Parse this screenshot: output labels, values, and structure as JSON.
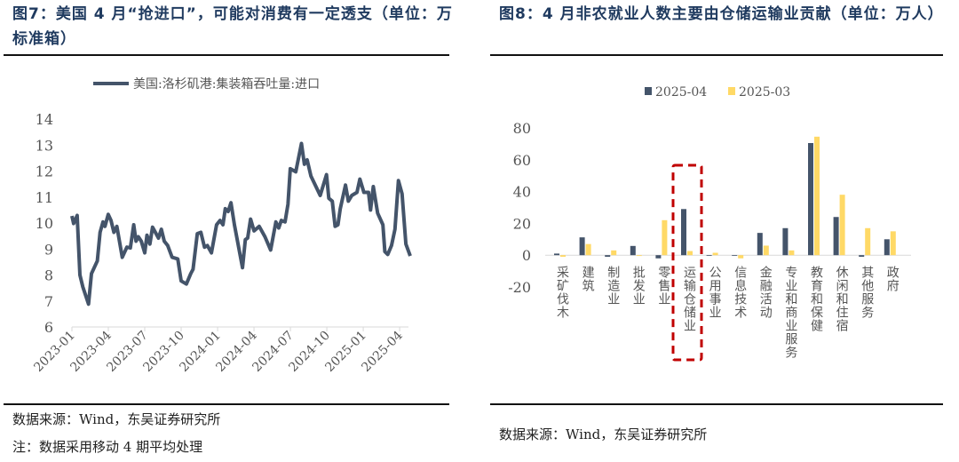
{
  "left": {
    "title": "图7：美国 4 月“抢进口”，可能对消费有一定透支（单位：万标准箱）",
    "source": "数据来源：Wind，东吴证券研究所",
    "note": "注：数据采用移动 4 期平均处理"
  },
  "right": {
    "title": "图8：4 月非农就业人数主要由仓储运输业贡献（单位：万人）",
    "source": "数据来源：Wind，东吴证券研究所"
  },
  "chart_data": [
    {
      "type": "line",
      "title": "美国 4 月“抢进口”，可能对消费有一定透支",
      "ylabel": "万标准箱",
      "ylim": [
        6,
        14
      ],
      "yticks": [
        "6",
        "7",
        "8",
        "9",
        "10",
        "11",
        "12",
        "13",
        "14"
      ],
      "xticks": [
        "2023-01",
        "2023-04",
        "2023-07",
        "2023-10",
        "2024-01",
        "2024-04",
        "2024-07",
        "2024-10",
        "2025-01",
        "2025-04"
      ],
      "x_unit": "months since 2023-01",
      "series": [
        {
          "name": "美国:洛杉矶港:集装箱吞吐量:进口",
          "color": "#44546a",
          "x": [
            0,
            0.14,
            0.43,
            0.66,
            0.9,
            1.37,
            1.61,
            2.09,
            2.32,
            2.56,
            2.72,
            2.99,
            3.22,
            3.46,
            3.7,
            4.15,
            4.53,
            4.81,
            5.09,
            5.28,
            5.47,
            5.71,
            6.0,
            6.18,
            6.42,
            6.64,
            7.13,
            7.37,
            7.61,
            7.89,
            8.25,
            8.72,
            9.0,
            9.43,
            9.79,
            9.98,
            10.33,
            10.62,
            10.92,
            11.16,
            11.49,
            11.92,
            12.2,
            12.44,
            12.63,
            12.87,
            13.1,
            13.39,
            14.05,
            14.29,
            14.48,
            14.72,
            15.0,
            15.43,
            15.9,
            16.37,
            16.8,
            17.04,
            17.25,
            17.56,
            17.8,
            17.99,
            18.44,
            18.91,
            19.15,
            19.38,
            19.69,
            20.45,
            20.97,
            21.16,
            21.45,
            21.68,
            21.92,
            22.11,
            22.54,
            22.77,
            23.06,
            23.48,
            23.72,
            24.05,
            24.43,
            24.6,
            24.83,
            25.19,
            25.62,
            25.78,
            26.02,
            26.33,
            26.61,
            26.9,
            27.2,
            27.51,
            27.87
          ],
          "values": [
            10.27,
            9.98,
            10.29,
            8.0,
            7.54,
            6.88,
            8.05,
            8.54,
            9.64,
            10.04,
            9.87,
            10.33,
            10.1,
            9.64,
            9.87,
            8.68,
            9.07,
            9.04,
            9.93,
            9.3,
            9.47,
            9.3,
            8.85,
            9.53,
            9.19,
            9.84,
            9.42,
            9.76,
            9.3,
            9.13,
            8.68,
            8.62,
            7.77,
            7.65,
            8.05,
            8.22,
            9.59,
            9.64,
            9.07,
            9.13,
            8.85,
            9.93,
            10.1,
            9.93,
            10.55,
            10.44,
            10.78,
            9.93,
            8.28,
            9.36,
            9.42,
            10.15,
            9.7,
            9.87,
            9.47,
            8.96,
            10.04,
            9.81,
            10.1,
            10.04,
            10.72,
            12.09,
            11.97,
            13.06,
            12.26,
            12.43,
            11.8,
            11.06,
            11.86,
            10.95,
            10.84,
            9.87,
            9.93,
            10.55,
            11.46,
            10.84,
            11.06,
            11.18,
            11.69,
            11.18,
            11.18,
            10.5,
            11.4,
            10.38,
            9.93,
            8.9,
            8.79,
            9.13,
            9.76,
            11.63,
            11.12,
            9.19,
            8.73
          ]
        }
      ]
    },
    {
      "type": "bar",
      "title": "4 月非农就业人数主要由仓储运输业贡献",
      "ylabel": "万人",
      "ylim": [
        -20,
        80
      ],
      "yticks": [
        "-20",
        "0",
        "20",
        "40",
        "60",
        "80"
      ],
      "categories": [
        "采矿伐木",
        "建筑",
        "制造业",
        "批发业",
        "零售业",
        "运输仓储业",
        "公用事业",
        "信息技术",
        "金融活动",
        "专业和商业服务",
        "教育和保健",
        "休闲和住宿",
        "其他服务",
        "政府"
      ],
      "highlight": "运输仓储业",
      "series": [
        {
          "name": "2025-04",
          "color": "#44546a",
          "values": [
            1,
            11.2,
            -1,
            5.8,
            -2,
            29,
            0,
            0,
            14,
            17,
            70.5,
            24,
            -1,
            10
          ]
        },
        {
          "name": "2025-03",
          "color": "#ffd966",
          "values": [
            -1,
            7,
            3,
            -0.5,
            22,
            2.6,
            1.5,
            -2,
            6,
            3,
            74.5,
            38,
            17,
            15
          ]
        }
      ]
    }
  ]
}
